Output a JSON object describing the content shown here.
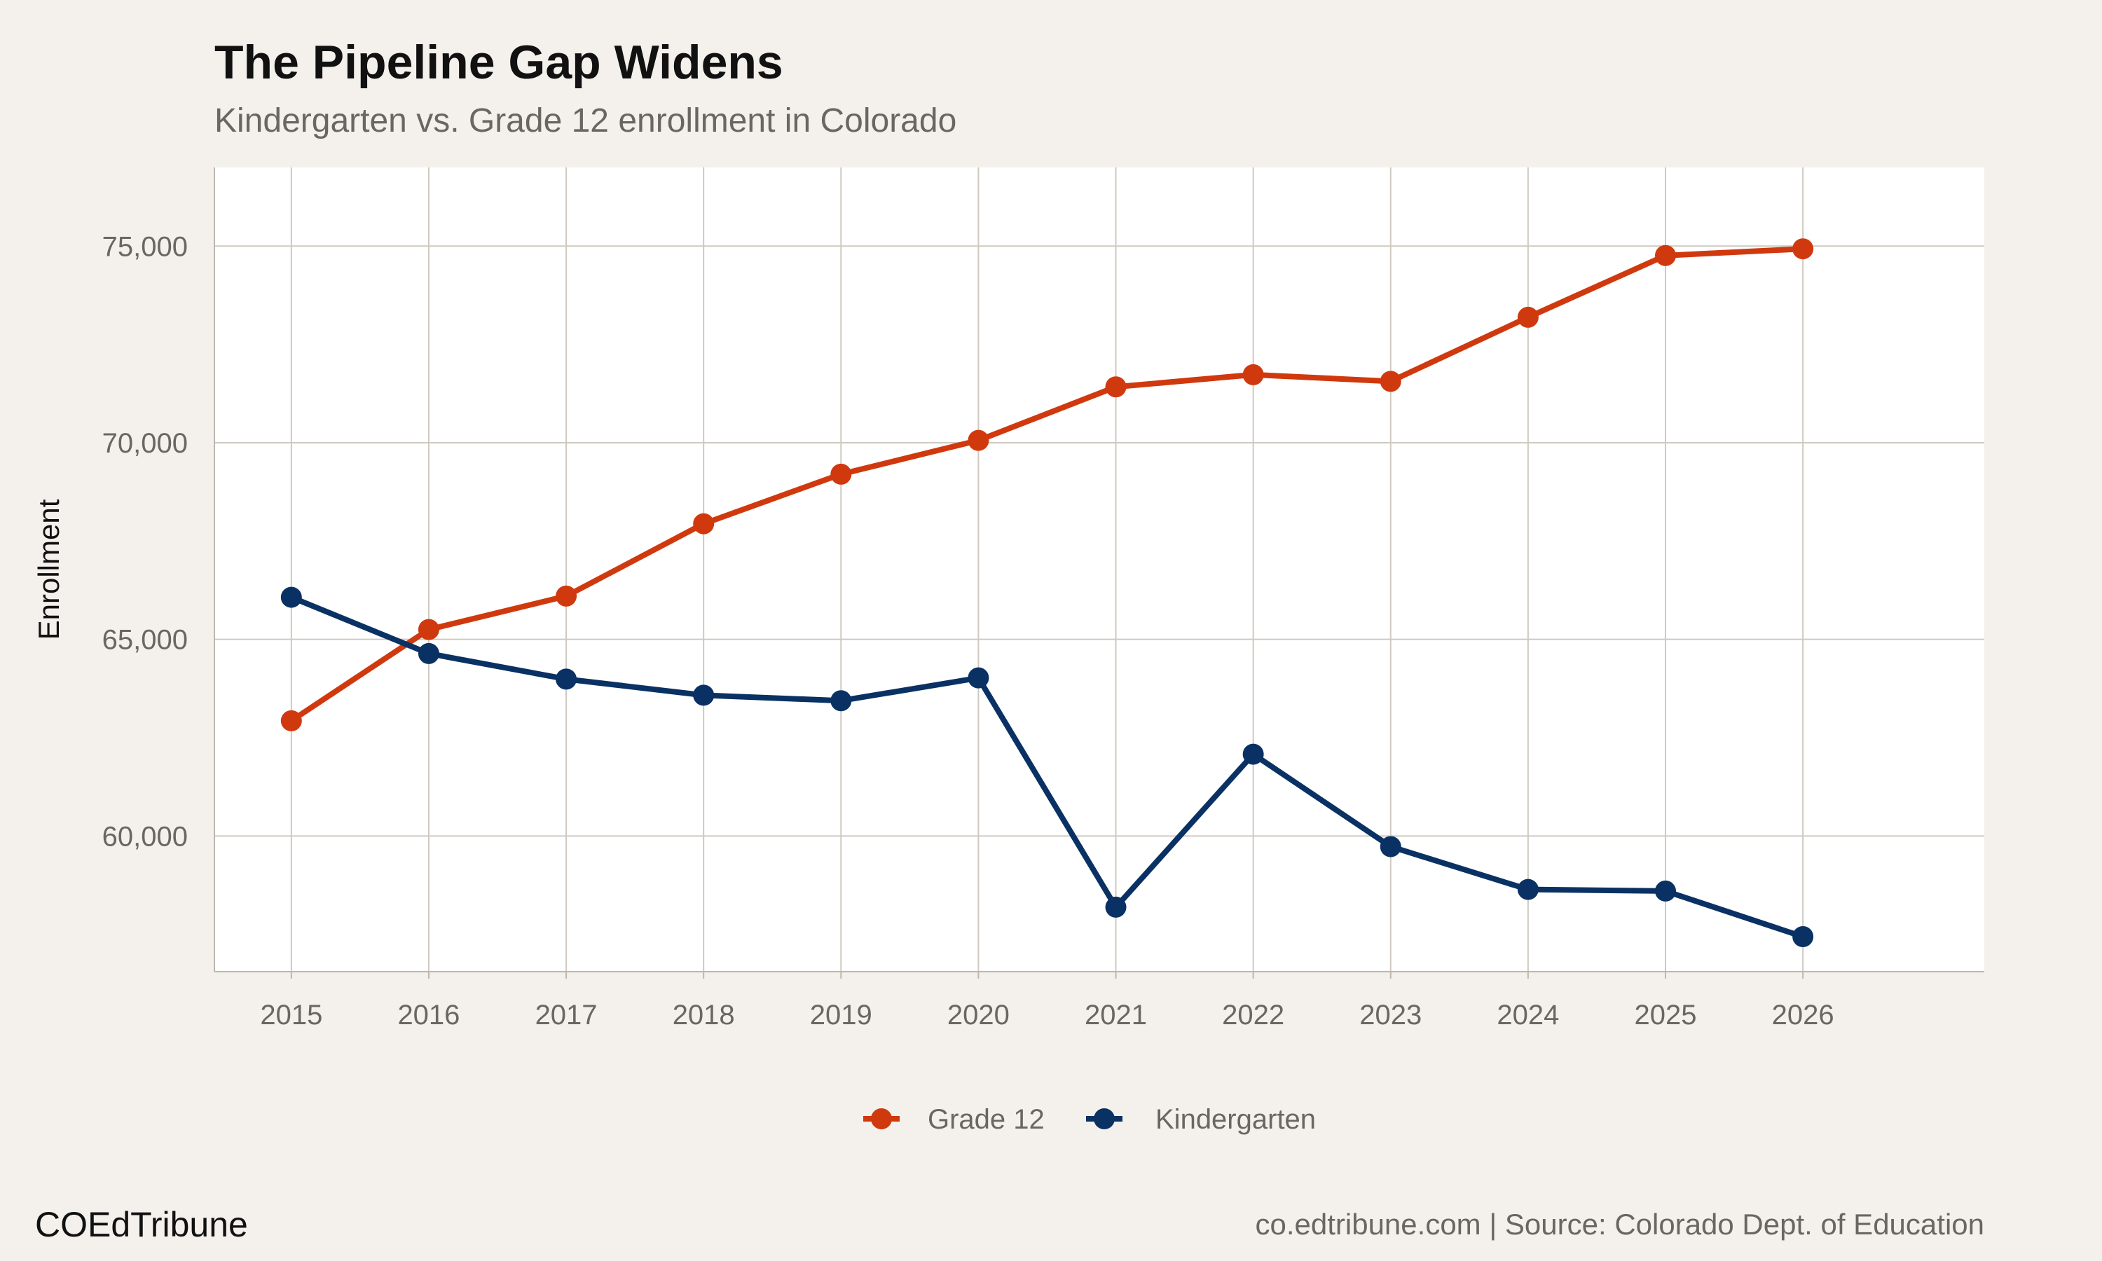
{
  "chart_data": {
    "type": "line",
    "title": "The Pipeline Gap Widens",
    "subtitle": "Kindergarten vs. Grade 12 enrollment in Colorado",
    "xlabel": "",
    "ylabel": "Enrollment",
    "x": [
      2015,
      2016,
      2017,
      2018,
      2019,
      2020,
      2021,
      2022,
      2023,
      2024,
      2025,
      2026
    ],
    "xlim": [
      2014.44,
      2027.32
    ],
    "ylim": [
      56550,
      77000
    ],
    "yticks": [
      60000,
      65000,
      70000,
      75000
    ],
    "ytick_labels": [
      "60,000",
      "65,000",
      "70,000",
      "75,000"
    ],
    "xtick_labels": [
      "2015",
      "2016",
      "2017",
      "2018",
      "2019",
      "2020",
      "2021",
      "2022",
      "2023",
      "2024",
      "2025",
      "2026"
    ],
    "grid": true,
    "legend_position": "bottom",
    "series": [
      {
        "name": "Grade 12",
        "color": "#d0390e",
        "values": [
          62930,
          65250,
          66100,
          67940,
          69200,
          70060,
          71420,
          71730,
          71560,
          73190,
          74760,
          74930
        ]
      },
      {
        "name": "Kindergarten",
        "color": "#0a3163",
        "values": [
          66070,
          64640,
          63990,
          63580,
          63440,
          64020,
          58190,
          62080,
          59730,
          58640,
          58600,
          57440
        ]
      }
    ]
  },
  "footer": {
    "brand": "COEdTribune",
    "source": "co.edtribune.com | Source: Colorado Dept. of Education"
  },
  "colors": {
    "background": "#f4f1ec",
    "panel": "#ffffff",
    "grid": "#cfc9c0"
  }
}
